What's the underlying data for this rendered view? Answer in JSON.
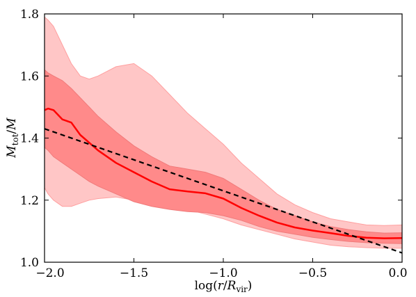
{
  "chart_data": {
    "type": "line",
    "xlabel": "log(r/R_vir)",
    "ylabel": "M_tot/M",
    "xlim": [
      -2.0,
      0.0
    ],
    "ylim": [
      1.0,
      1.8
    ],
    "xticks": [
      -2.0,
      -1.5,
      -1.0,
      -0.5,
      0.0
    ],
    "xtick_labels": [
      "−2.0",
      "−1.5",
      "−1.0",
      "−0.5",
      "0.0"
    ],
    "yticks": [
      1.0,
      1.2,
      1.4,
      1.6,
      1.8
    ],
    "ytick_labels": [
      "1.0",
      "1.2",
      "1.4",
      "1.6",
      "1.8"
    ],
    "grid": false,
    "x": [
      -2.0,
      -1.98,
      -1.95,
      -1.9,
      -1.85,
      -1.8,
      -1.75,
      -1.7,
      -1.6,
      -1.5,
      -1.4,
      -1.3,
      -1.2,
      -1.1,
      -1.0,
      -0.9,
      -0.8,
      -0.7,
      -0.6,
      -0.5,
      -0.4,
      -0.3,
      -0.2,
      -0.1,
      0.0
    ],
    "series": [
      {
        "role": "median",
        "color": "#ff0000",
        "values": [
          1.49,
          1.495,
          1.49,
          1.46,
          1.45,
          1.41,
          1.385,
          1.36,
          1.32,
          1.29,
          1.26,
          1.235,
          1.228,
          1.222,
          1.205,
          1.175,
          1.15,
          1.128,
          1.112,
          1.102,
          1.094,
          1.085,
          1.079,
          1.077,
          1.078
        ]
      },
      {
        "role": "inner-band",
        "color": "#ff8a8a",
        "lower": [
          1.37,
          1.36,
          1.34,
          1.32,
          1.3,
          1.28,
          1.26,
          1.245,
          1.22,
          1.195,
          1.18,
          1.17,
          1.163,
          1.16,
          1.15,
          1.135,
          1.115,
          1.1,
          1.09,
          1.08,
          1.073,
          1.067,
          1.063,
          1.061,
          1.06
        ],
        "upper": [
          1.62,
          1.61,
          1.6,
          1.585,
          1.56,
          1.53,
          1.5,
          1.47,
          1.42,
          1.375,
          1.34,
          1.31,
          1.3,
          1.29,
          1.27,
          1.235,
          1.2,
          1.17,
          1.15,
          1.13,
          1.115,
          1.105,
          1.098,
          1.094,
          1.095
        ]
      },
      {
        "role": "outer-band",
        "color": "#ffc6c6",
        "lower": [
          1.24,
          1.22,
          1.2,
          1.18,
          1.18,
          1.19,
          1.2,
          1.205,
          1.21,
          1.2,
          1.19,
          1.18,
          1.17,
          1.155,
          1.14,
          1.12,
          1.105,
          1.09,
          1.075,
          1.065,
          1.055,
          1.05,
          1.047,
          1.045,
          1.045
        ],
        "upper": [
          1.79,
          1.78,
          1.76,
          1.7,
          1.64,
          1.6,
          1.59,
          1.6,
          1.63,
          1.64,
          1.6,
          1.54,
          1.48,
          1.43,
          1.38,
          1.32,
          1.27,
          1.22,
          1.185,
          1.16,
          1.14,
          1.13,
          1.12,
          1.118,
          1.12
        ]
      },
      {
        "role": "fit",
        "style": "dashed",
        "color": "#000000",
        "x": [
          -2.0,
          0.0
        ],
        "values": [
          1.43,
          1.03
        ]
      }
    ]
  }
}
